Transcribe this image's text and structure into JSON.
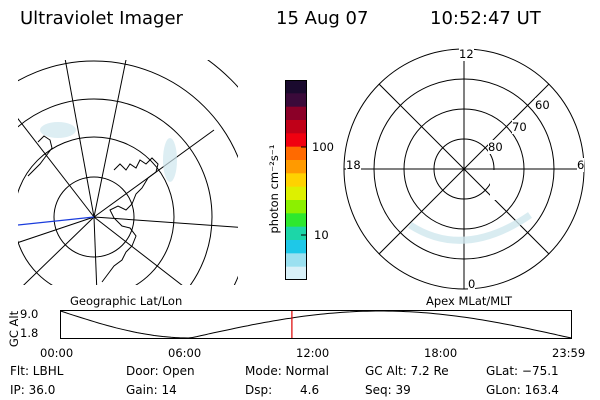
{
  "header": {
    "title": "Ultraviolet Imager",
    "date": "15 Aug 07",
    "time": "10:52:47 UT"
  },
  "geographic_panel": {
    "label": "Geographic Lat/Lon"
  },
  "polar_panel": {
    "label": "Apex MLat/MLT",
    "mlt_labels": {
      "top": "12",
      "left": "18",
      "right": "6",
      "bottom": "0"
    },
    "lat_labels": [
      "60",
      "70",
      "80"
    ]
  },
  "colorbar": {
    "unit_label": "photon cm⁻²s⁻¹",
    "ticks": [
      "100",
      "10"
    ],
    "colors": [
      "#1a0a2e",
      "#3a0a3a",
      "#8b0028",
      "#c00018",
      "#f00010",
      "#ff6a00",
      "#ff9a00",
      "#ffd200",
      "#ddf000",
      "#8cf000",
      "#2ee82e",
      "#1cd6a8",
      "#1ec8e8",
      "#9ae0f0",
      "#d8f0f8"
    ]
  },
  "altitude_strip": {
    "ylabel": "GC Alt",
    "y_ticks": [
      "9.0",
      "1.8"
    ],
    "x_ticks": [
      "00:00",
      "06:00",
      "12:00",
      "18:00",
      "23:59"
    ],
    "current_time_marker": "10:52",
    "marker_color": "#dd0000"
  },
  "info": {
    "flt": "Flt: LBHL",
    "ip": "IP: 36.0",
    "door": "Door: Open",
    "gain": "Gain: 14",
    "mode": "Mode: Normal",
    "dsp_label": "Dsp:",
    "dsp_value": "4.6",
    "gc_alt": "GC Alt: 7.2 Re",
    "seq": "Seq: 39",
    "glat": "GLat: −75.1",
    "glon": "GLon: 163.4"
  }
}
